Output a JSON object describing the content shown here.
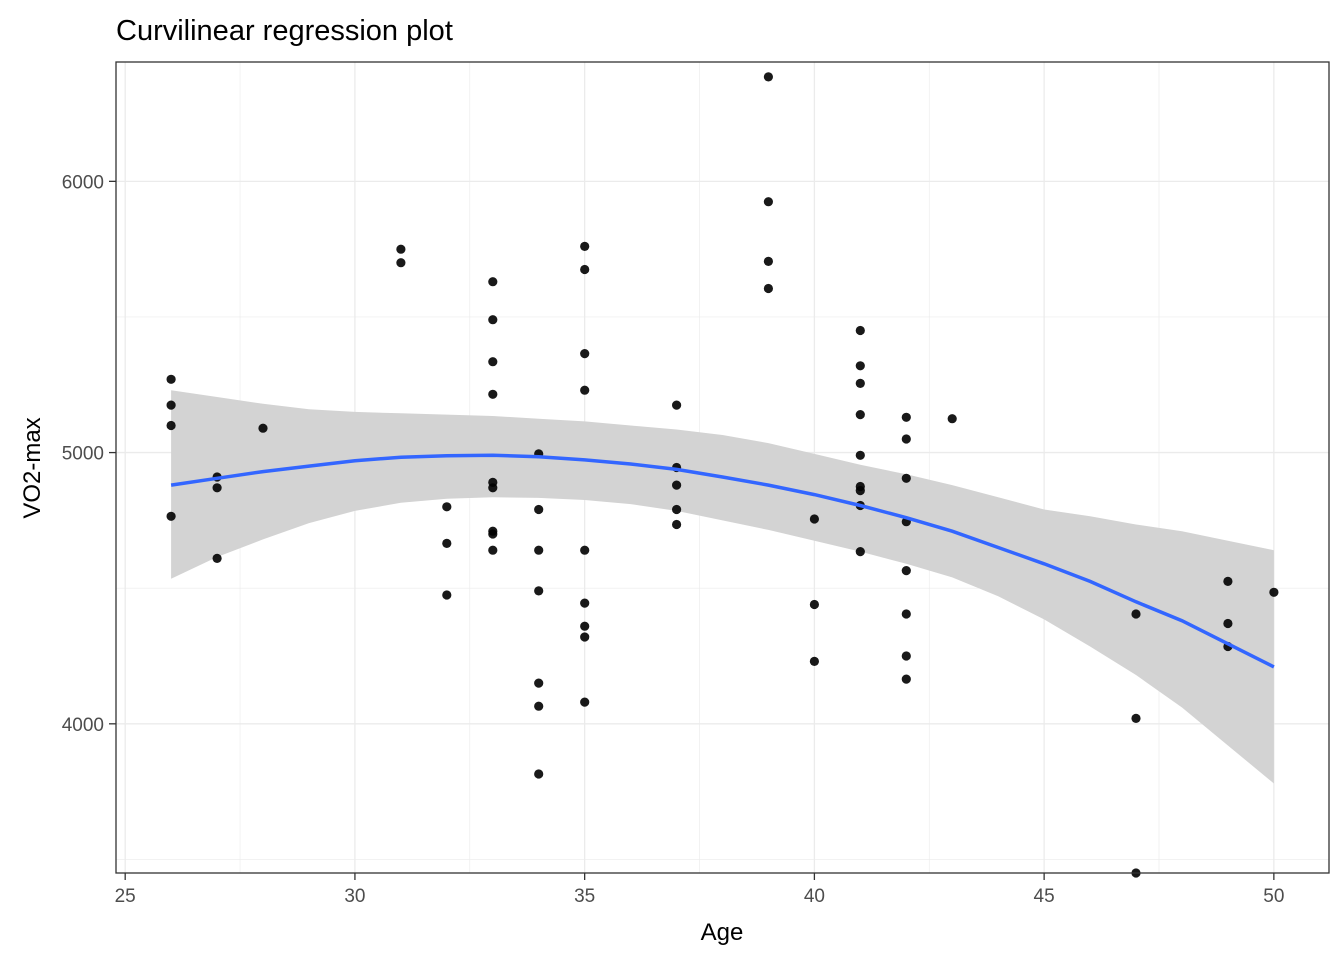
{
  "chart_data": {
    "type": "scatter",
    "title": "Curvilinear regression plot",
    "xlabel": "Age",
    "ylabel": "VO2-max",
    "xlim": [
      24.8,
      51.2
    ],
    "ylim": [
      3450,
      6440
    ],
    "x_ticks": [
      25,
      30,
      35,
      40,
      45,
      50
    ],
    "x_tick_labels": [
      "25",
      "30",
      "35",
      "40",
      "45",
      "50"
    ],
    "y_ticks": [
      4000,
      5000,
      6000
    ],
    "y_tick_labels": [
      "4000",
      "5000",
      "6000"
    ],
    "grid": true,
    "legend": "none",
    "colors": {
      "points": "#000000",
      "fit_line": "#3366ff",
      "ribbon": "#d3d3d3",
      "grid": "#ebebeb",
      "border": "#333333"
    },
    "points": [
      [
        26,
        5270
      ],
      [
        26,
        5175
      ],
      [
        26,
        5100
      ],
      [
        26,
        4765
      ],
      [
        27,
        4910
      ],
      [
        27,
        4870
      ],
      [
        27,
        4610
      ],
      [
        28,
        5090
      ],
      [
        31,
        5750
      ],
      [
        31,
        5700
      ],
      [
        32,
        4800
      ],
      [
        32,
        4665
      ],
      [
        32,
        4475
      ],
      [
        33,
        5630
      ],
      [
        33,
        5490
      ],
      [
        33,
        5335
      ],
      [
        33,
        5215
      ],
      [
        33,
        4890
      ],
      [
        33,
        4870
      ],
      [
        33,
        4710
      ],
      [
        33,
        4700
      ],
      [
        33,
        4640
      ],
      [
        34,
        4995
      ],
      [
        34,
        4790
      ],
      [
        34,
        4640
      ],
      [
        34,
        4490
      ],
      [
        34,
        4150
      ],
      [
        34,
        4065
      ],
      [
        34,
        3815
      ],
      [
        35,
        5760
      ],
      [
        35,
        5675
      ],
      [
        35,
        5365
      ],
      [
        35,
        5230
      ],
      [
        35,
        4640
      ],
      [
        35,
        4445
      ],
      [
        35,
        4360
      ],
      [
        35,
        4320
      ],
      [
        35,
        4080
      ],
      [
        37,
        5175
      ],
      [
        37,
        4945
      ],
      [
        37,
        4880
      ],
      [
        37,
        4790
      ],
      [
        37,
        4735
      ],
      [
        39,
        6385
      ],
      [
        39,
        5925
      ],
      [
        39,
        5705
      ],
      [
        39,
        5605
      ],
      [
        40,
        4755
      ],
      [
        40,
        4440
      ],
      [
        40,
        4230
      ],
      [
        41,
        5450
      ],
      [
        41,
        5320
      ],
      [
        41,
        5255
      ],
      [
        41,
        5140
      ],
      [
        41,
        4990
      ],
      [
        41,
        4875
      ],
      [
        41,
        4860
      ],
      [
        41,
        4805
      ],
      [
        41,
        4635
      ],
      [
        42,
        5130
      ],
      [
        42,
        5050
      ],
      [
        42,
        4905
      ],
      [
        42,
        4745
      ],
      [
        42,
        4565
      ],
      [
        42,
        4405
      ],
      [
        42,
        4250
      ],
      [
        42,
        4165
      ],
      [
        43,
        5125
      ],
      [
        47,
        4405
      ],
      [
        47,
        4020
      ],
      [
        47,
        3450
      ],
      [
        49,
        4525
      ],
      [
        49,
        4370
      ],
      [
        49,
        4285
      ],
      [
        50,
        4485
      ]
    ],
    "fit": {
      "x": [
        26,
        27,
        28,
        29,
        30,
        31,
        32,
        33,
        34,
        35,
        36,
        37,
        38,
        39,
        40,
        41,
        42,
        43,
        44,
        45,
        46,
        47,
        48,
        49,
        50
      ],
      "y": [
        4880,
        4905,
        4930,
        4950,
        4970,
        4983,
        4988,
        4990,
        4985,
        4973,
        4958,
        4938,
        4910,
        4880,
        4845,
        4805,
        4760,
        4710,
        4650,
        4590,
        4525,
        4450,
        4380,
        4295,
        4210
      ],
      "lower": [
        4535,
        4615,
        4680,
        4740,
        4785,
        4815,
        4830,
        4835,
        4833,
        4825,
        4810,
        4785,
        4750,
        4715,
        4675,
        4635,
        4590,
        4540,
        4470,
        4385,
        4285,
        4180,
        4060,
        3920,
        3780
      ],
      "upper": [
        5230,
        5205,
        5180,
        5160,
        5150,
        5145,
        5140,
        5135,
        5125,
        5115,
        5100,
        5085,
        5065,
        5035,
        4995,
        4955,
        4920,
        4880,
        4835,
        4790,
        4765,
        4735,
        4710,
        4675,
        4640
      ]
    }
  }
}
